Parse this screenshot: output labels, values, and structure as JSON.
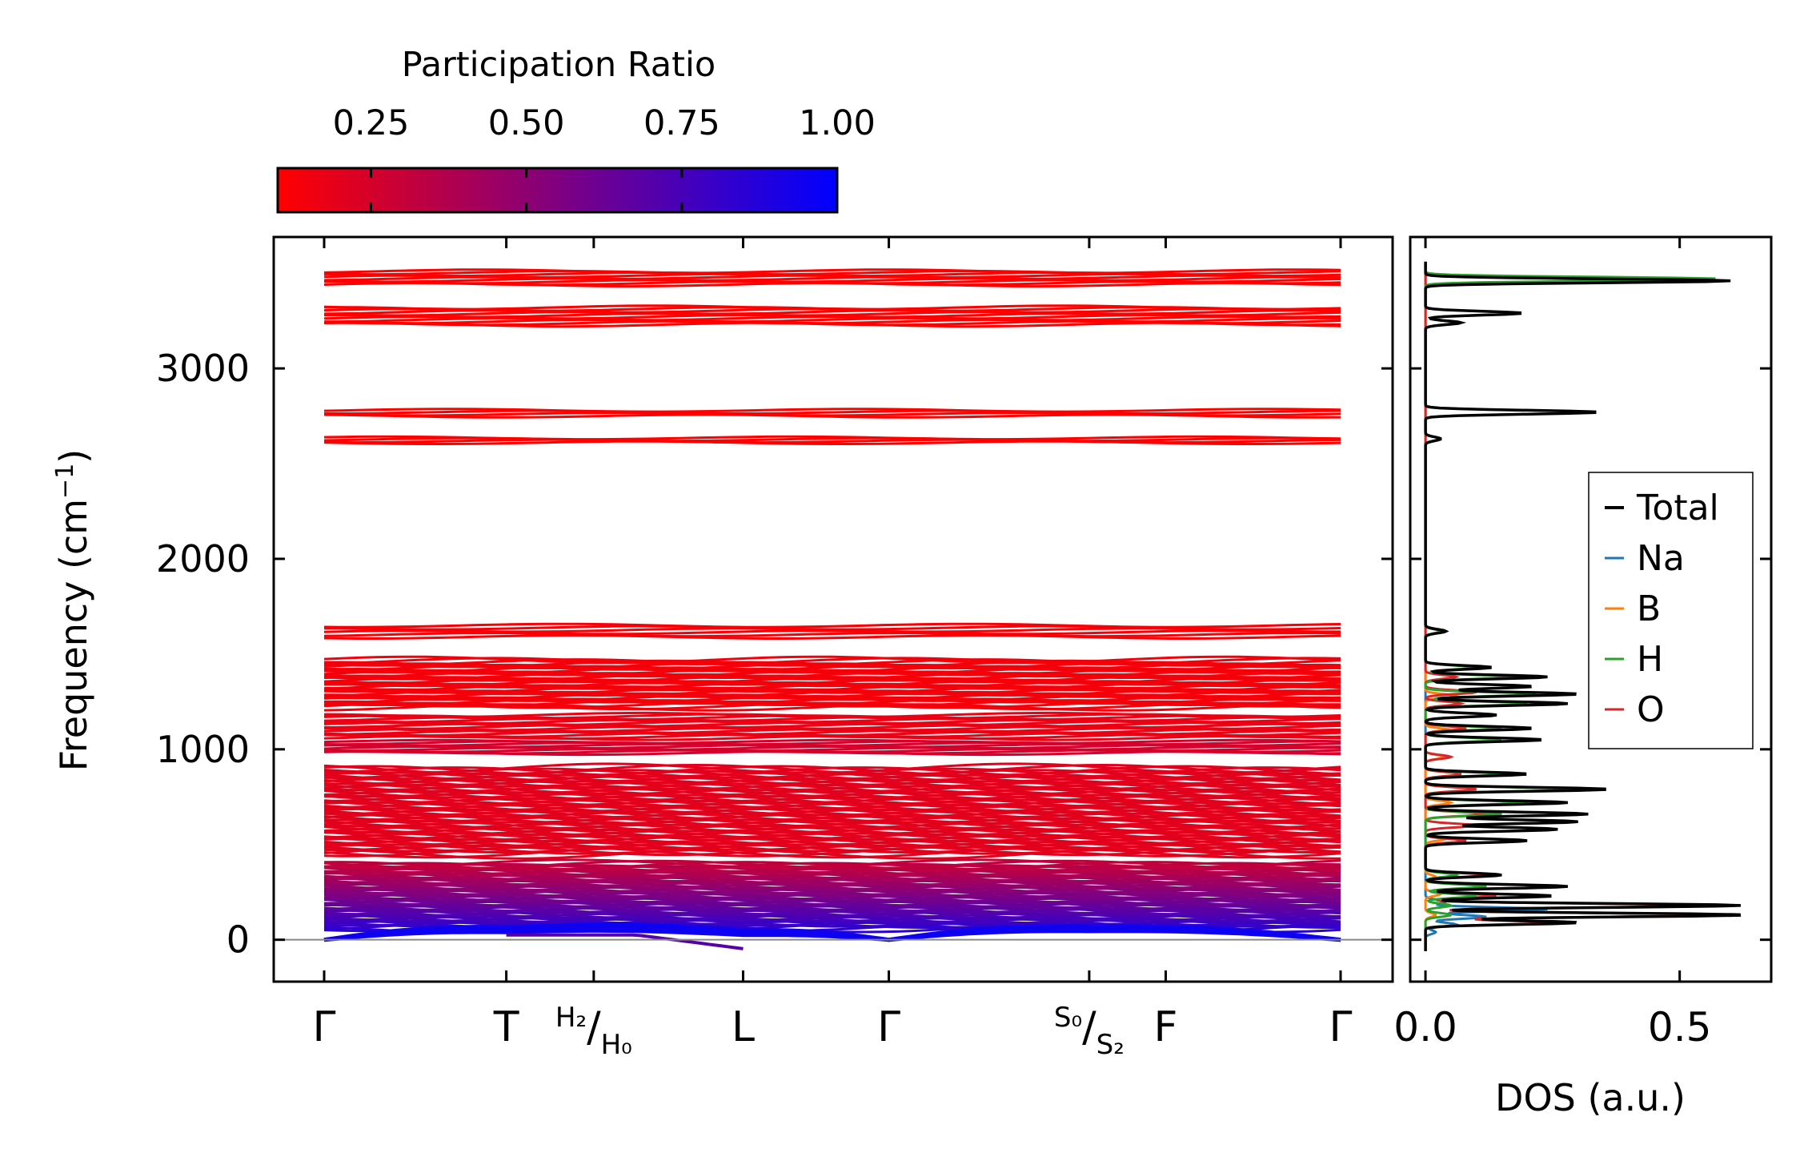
{
  "chart_data": [
    {
      "type": "line",
      "title": "",
      "xlabel": "",
      "ylabel": "Frequency (cm⁻¹)",
      "ylim": [
        -220,
        3690
      ],
      "yticks": [
        0,
        1000,
        2000,
        3000
      ],
      "ytick_labels": [
        "0",
        "1000",
        "2000",
        "3000"
      ],
      "x_ticks": [
        {
          "label": "Γ",
          "pos": 0.0
        },
        {
          "label": "T",
          "pos": 1.0
        },
        {
          "label_top": "H₂",
          "label_bottom": "H₀",
          "pos": 1.48
        },
        {
          "label": "L",
          "pos": 2.3
        },
        {
          "label": "Γ",
          "pos": 3.1
        },
        {
          "label_top": "S₀",
          "label_bottom": "S₂",
          "pos": 4.2
        },
        {
          "label": "F",
          "pos": 4.62
        },
        {
          "label": "Γ",
          "pos": 5.58
        }
      ],
      "colorbar": {
        "label": "Participation Ratio",
        "min": 0.1,
        "max": 1.0,
        "ticks": [
          0.25,
          0.5,
          0.75,
          1.0
        ],
        "tick_labels": [
          "0.25",
          "0.50",
          "0.75",
          "1.00"
        ],
        "low_color": "#ff0000",
        "high_color": "#0000ff"
      },
      "band_groups": [
        {
          "range": [
            3440,
            3510
          ],
          "count": 10,
          "pr": 0.1
        },
        {
          "range": [
            3230,
            3320
          ],
          "count": 12,
          "pr": 0.1
        },
        {
          "range": [
            2750,
            2780
          ],
          "count": 4,
          "pr": 0.1
        },
        {
          "range": [
            2610,
            2635
          ],
          "count": 4,
          "pr": 0.1
        },
        {
          "range": [
            1590,
            1650
          ],
          "count": 6,
          "pr": 0.12
        },
        {
          "range": [
            1220,
            1470
          ],
          "count": 36,
          "pr": 0.14
        },
        {
          "range": [
            1060,
            1180
          ],
          "count": 18,
          "pr": 0.17
        },
        {
          "range": [
            980,
            1040
          ],
          "count": 10,
          "pr": 0.25
        },
        {
          "range": [
            450,
            900
          ],
          "count": 70,
          "pr": 0.2
        },
        {
          "range": [
            60,
            400
          ],
          "count": 60,
          "pr": 0.5
        }
      ],
      "acoustic_bands": {
        "path_x": [
          0.0,
          1.0,
          2.3,
          3.1,
          4.2,
          5.58
        ],
        "branches": [
          [
            0,
            40,
            25,
            0,
            45,
            0
          ],
          [
            0,
            55,
            38,
            0,
            58,
            0
          ],
          [
            0,
            65,
            50,
            0,
            70,
            0
          ]
        ],
        "pr": 0.95
      },
      "zero_line": 0
    },
    {
      "type": "line",
      "xlabel": "DOS (a.u.)",
      "xlim": [
        -0.03,
        0.68
      ],
      "xticks": [
        0.0,
        0.5
      ],
      "xtick_labels": [
        "0.0",
        "0.5"
      ],
      "ylim": [
        -220,
        3690
      ],
      "legend": {
        "placement": "right",
        "entries": [
          "Total",
          "Na",
          "B",
          "H",
          "O"
        ]
      },
      "series": [
        {
          "name": "Total",
          "color": "#000000",
          "peaks": [
            [
              3460,
              0.6
            ],
            [
              3290,
              0.19
            ],
            [
              3240,
              0.07
            ],
            [
              2770,
              0.34
            ],
            [
              2630,
              0.03
            ],
            [
              1620,
              0.04
            ],
            [
              1430,
              0.13
            ],
            [
              1380,
              0.24
            ],
            [
              1330,
              0.21
            ],
            [
              1290,
              0.3
            ],
            [
              1240,
              0.28
            ],
            [
              1180,
              0.14
            ],
            [
              1110,
              0.21
            ],
            [
              1050,
              0.23
            ],
            [
              870,
              0.2
            ],
            [
              790,
              0.36
            ],
            [
              720,
              0.28
            ],
            [
              660,
              0.32
            ],
            [
              620,
              0.3
            ],
            [
              580,
              0.26
            ],
            [
              520,
              0.2
            ],
            [
              340,
              0.15
            ],
            [
              280,
              0.28
            ],
            [
              230,
              0.25
            ],
            [
              180,
              0.62
            ],
            [
              130,
              0.63
            ],
            [
              90,
              0.3
            ]
          ]
        },
        {
          "name": "Na",
          "color": "#1f77b4",
          "peaks": [
            [
              200,
              0.04
            ],
            [
              160,
              0.24
            ],
            [
              120,
              0.12
            ],
            [
              80,
              0.06
            ],
            [
              40,
              0.02
            ]
          ]
        },
        {
          "name": "B",
          "color": "#ff7f0e",
          "peaks": [
            [
              1280,
              0.06
            ],
            [
              1100,
              0.05
            ],
            [
              960,
              0.04
            ],
            [
              720,
              0.05
            ],
            [
              530,
              0.04
            ],
            [
              330,
              0.02
            ],
            [
              240,
              0.03
            ],
            [
              130,
              0.02
            ]
          ]
        },
        {
          "name": "H",
          "color": "#2ca02c",
          "peaks": [
            [
              3470,
              0.58
            ],
            [
              3290,
              0.18
            ],
            [
              3240,
              0.06
            ],
            [
              2770,
              0.33
            ],
            [
              2630,
              0.03
            ],
            [
              1620,
              0.03
            ],
            [
              1430,
              0.1
            ],
            [
              1380,
              0.18
            ],
            [
              1290,
              0.22
            ],
            [
              1240,
              0.2
            ],
            [
              1110,
              0.15
            ],
            [
              1050,
              0.15
            ],
            [
              870,
              0.15
            ],
            [
              790,
              0.3
            ],
            [
              720,
              0.2
            ],
            [
              660,
              0.15
            ],
            [
              340,
              0.06
            ],
            [
              280,
              0.12
            ],
            [
              230,
              0.1
            ],
            [
              180,
              0.05
            ],
            [
              130,
              0.05
            ]
          ]
        },
        {
          "name": "O",
          "color": "#d62728",
          "peaks": [
            [
              1380,
              0.06
            ],
            [
              1300,
              0.1
            ],
            [
              1240,
              0.07
            ],
            [
              1110,
              0.08
            ],
            [
              960,
              0.05
            ],
            [
              870,
              0.07
            ],
            [
              790,
              0.1
            ],
            [
              660,
              0.12
            ],
            [
              600,
              0.1
            ],
            [
              520,
              0.08
            ],
            [
              340,
              0.12
            ],
            [
              280,
              0.26
            ],
            [
              230,
              0.14
            ],
            [
              180,
              0.55
            ],
            [
              130,
              0.58
            ],
            [
              90,
              0.25
            ]
          ]
        }
      ]
    }
  ]
}
